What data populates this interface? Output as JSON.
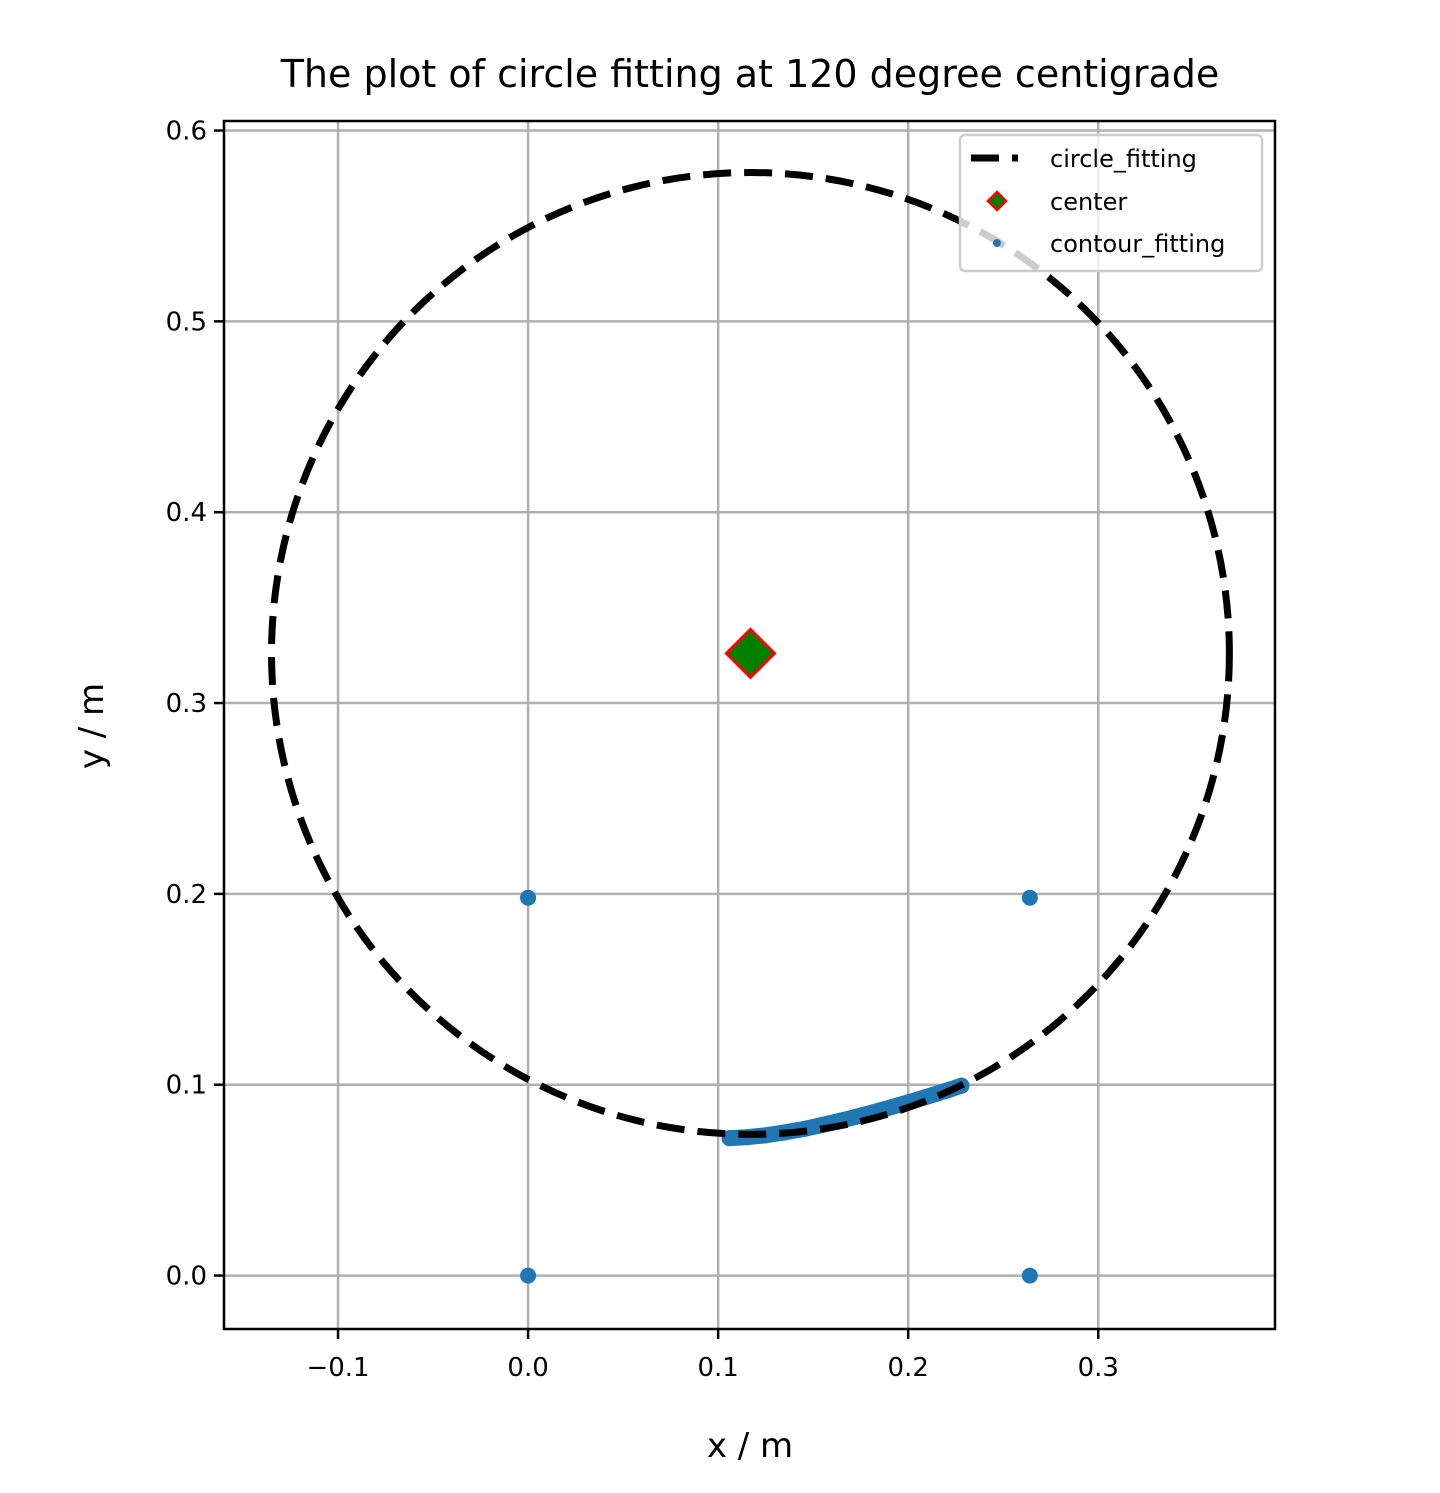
{
  "chart_data": {
    "type": "scatter",
    "title": "The plot of circle fitting at 120 degree centigrade",
    "xlabel": "x / m",
    "ylabel": "y / m",
    "xlim": [
      -0.16,
      0.393
    ],
    "ylim": [
      -0.028,
      0.605
    ],
    "xticks": [
      -0.1,
      0.0,
      0.1,
      0.2,
      0.3
    ],
    "xtick_labels": [
      "−0.1",
      "0.0",
      "0.1",
      "0.2",
      "0.3"
    ],
    "yticks": [
      0.0,
      0.1,
      0.2,
      0.3,
      0.4,
      0.5,
      0.6
    ],
    "ytick_labels": [
      "0.0",
      "0.1",
      "0.2",
      "0.3",
      "0.4",
      "0.5",
      "0.6"
    ],
    "grid": true,
    "legend_position": "top-right",
    "circle": {
      "name": "circle_fitting",
      "cx": 0.117,
      "cy": 0.326,
      "r": 0.252,
      "color": "#000000",
      "style": "dashed"
    },
    "center": {
      "name": "center",
      "x": 0.117,
      "y": 0.326,
      "face_color": "#008000",
      "edge_color": "#ff0000"
    },
    "contour": {
      "name": "contour_fitting",
      "color": "#1f77b4",
      "points": [
        [
          0.0,
          0.198
        ],
        [
          0.264,
          0.198
        ],
        [
          0.0,
          0.0
        ],
        [
          0.264,
          0.0
        ],
        [
          0.106,
          0.072
        ],
        [
          0.115,
          0.0725
        ],
        [
          0.125,
          0.0735
        ],
        [
          0.135,
          0.075
        ],
        [
          0.145,
          0.0768
        ],
        [
          0.155,
          0.079
        ],
        [
          0.165,
          0.0813
        ],
        [
          0.175,
          0.0838
        ],
        [
          0.185,
          0.0865
        ],
        [
          0.195,
          0.0893
        ],
        [
          0.205,
          0.0922
        ],
        [
          0.215,
          0.0953
        ],
        [
          0.222,
          0.0975
        ],
        [
          0.228,
          0.0995
        ]
      ]
    }
  }
}
